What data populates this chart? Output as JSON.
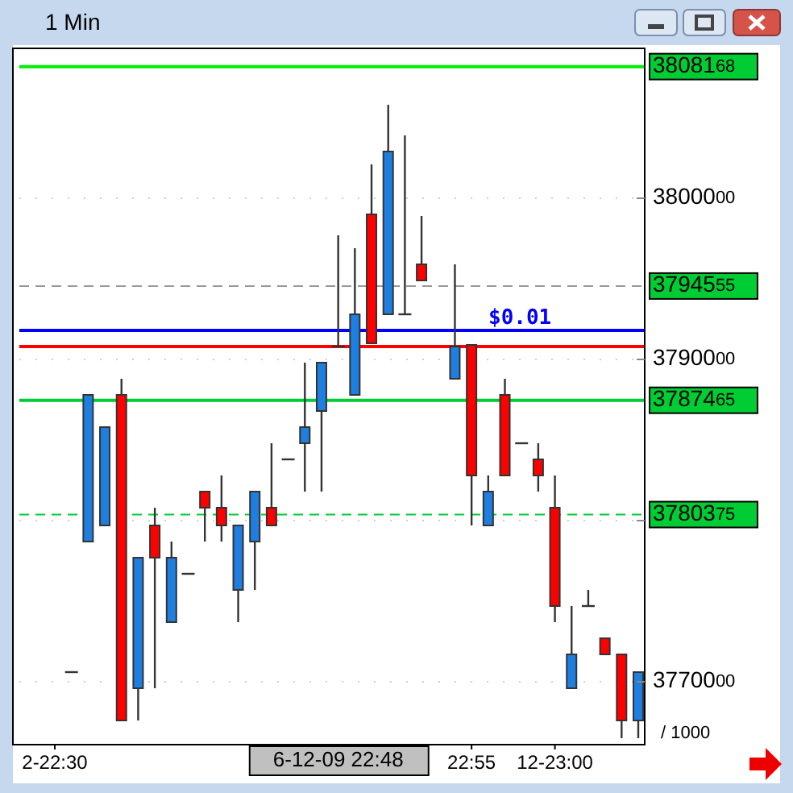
{
  "chart_data": {
    "type": "candlestick",
    "title": "1 Min",
    "categories": [
      "2-22:30",
      null,
      null,
      null,
      null,
      null,
      null,
      null,
      null,
      null,
      null,
      null,
      null,
      null,
      null,
      null,
      null,
      null,
      null,
      null,
      null,
      null,
      null,
      null,
      null,
      "22:55",
      null,
      null,
      null,
      null,
      "12-23:00",
      null,
      null,
      null,
      null,
      null
    ],
    "ohlc": [
      null,
      [
        3770600,
        3770600,
        3770600,
        3770600
      ],
      [
        3778700,
        3787800,
        3778700,
        3787800
      ],
      [
        3779700,
        3785800,
        3779700,
        3785800
      ],
      [
        3787800,
        3788800,
        3767600,
        3767600
      ],
      [
        3769600,
        3777700,
        3767600,
        3777700
      ],
      [
        3779700,
        3780800,
        3769600,
        3777700
      ],
      [
        3773700,
        3778700,
        3773700,
        3777700
      ],
      [
        3776700,
        3776700,
        3776700,
        3776700
      ],
      [
        3781800,
        3781800,
        3778700,
        3780800
      ],
      [
        3780800,
        3782800,
        3778700,
        3779700
      ],
      [
        3775700,
        3779700,
        3773700,
        3779700
      ],
      [
        3778700,
        3781800,
        3775700,
        3781800
      ],
      [
        3780800,
        3784800,
        3779700,
        3779700
      ],
      [
        3783800,
        3783800,
        3783800,
        3783800
      ],
      [
        3784800,
        3789800,
        3781800,
        3785800
      ],
      [
        3786800,
        3789800,
        3781800,
        3789800
      ],
      [
        3790800,
        3797700,
        3790800,
        3790800
      ],
      [
        3787800,
        3796900,
        3787800,
        3792800
      ],
      [
        3799000,
        3802100,
        3791000,
        3791000
      ],
      [
        3792800,
        3805800,
        3792800,
        3802900
      ],
      [
        3792800,
        3803900,
        3792800,
        3792800
      ],
      [
        3795900,
        3798900,
        3794900,
        3794900
      ],
      null,
      [
        3788800,
        3795900,
        3788800,
        3790800
      ],
      [
        3790900,
        3790900,
        3779700,
        3782800
      ],
      [
        3779700,
        3782800,
        3779700,
        3781800
      ],
      [
        3787800,
        3788800,
        3782800,
        3782800
      ],
      [
        3784800,
        3784800,
        3784800,
        3784800
      ],
      [
        3783800,
        3784800,
        3781800,
        3782800
      ],
      [
        3780800,
        3782800,
        3773700,
        3774700
      ],
      [
        3769600,
        3774700,
        3769600,
        3771700
      ],
      [
        3774700,
        3775700,
        3774700,
        3774700
      ],
      [
        3772700,
        3772700,
        3771700,
        3771700
      ],
      [
        3771700,
        3771700,
        3766500,
        3767600
      ],
      [
        3767600,
        3770600,
        3766500,
        3770600
      ]
    ],
    "colors": [
      null,
      "#333333",
      "#1e7fe0",
      "#1e7fe0",
      "#ff0000",
      "#1e7fe0",
      "#ff0000",
      "#1e7fe0",
      "#333333",
      "#ff0000",
      "#ff0000",
      "#1e7fe0",
      "#1e7fe0",
      "#ff0000",
      "#333333",
      "#1e7fe0",
      "#1e7fe0",
      "#333333",
      "#1e7fe0",
      "#ff0000",
      "#1e7fe0",
      "#333333",
      "#ff0000",
      null,
      "#1e7fe0",
      "#ff0000",
      "#1e7fe0",
      "#ff0000",
      "#333333",
      "#ff0000",
      "#ff0000",
      "#1e7fe0",
      "#333333",
      "#ff0000",
      "#ff0000",
      "#1e7fe0"
    ],
    "ylim": [
      3766100,
      3809300
    ],
    "yticks": [
      3770000,
      {
        "value": 3780000,
        "label": null
      },
      3790000,
      3800000
    ],
    "grid": true,
    "ref_lines": [
      {
        "axis": "y",
        "value": 3808168,
        "label": "3808168",
        "color": "#00ee00"
      },
      {
        "axis": "y",
        "value": 3794555,
        "label": "3794555",
        "color": "#999999",
        "line_style": "dashed"
      },
      {
        "axis": "y",
        "value": 3787465,
        "label": "3787465",
        "color": "#00cc33"
      },
      {
        "axis": "y",
        "value": 3780375,
        "label": "3780375",
        "color": "#00cc33",
        "line_style": "dashed"
      },
      {
        "axis": "y",
        "value": 3791800,
        "color": "#0000ff"
      },
      {
        "axis": "y",
        "value": 3790800,
        "color": "#ff0000"
      }
    ],
    "annotations": [
      "$0.01",
      "/ 1000",
      "6-12-09 22:48"
    ]
  }
}
